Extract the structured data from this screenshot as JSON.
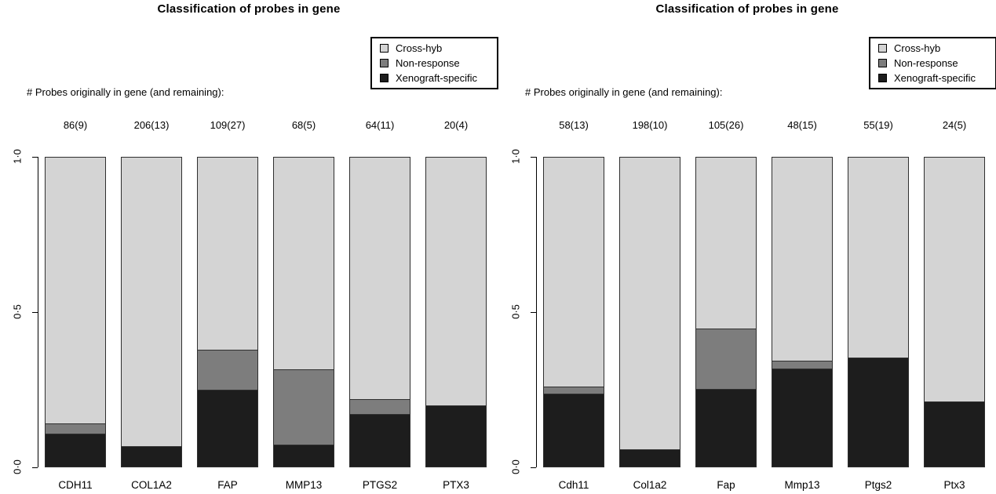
{
  "figure": {
    "background": "#ffffff"
  },
  "colors": {
    "Cross-hyb": "#d4d4d4",
    "Non-response": "#7d7d7d",
    "Xenograft-specific": "#1d1d1d",
    "segment_border": "#2f2f2f",
    "axis": "#000000"
  },
  "chart_data": [
    {
      "type": "bar",
      "stacked": true,
      "title": "Classification of probes in gene",
      "annotation": "# Probes originally in gene (and remaining):",
      "legend": [
        "Cross-hyb",
        "Non-response",
        "Xenograft-specific"
      ],
      "legend_position": "top-right",
      "categories": [
        "CDH11",
        "COL1A2",
        "FAP",
        "MMP13",
        "PTGS2",
        "PTX3"
      ],
      "counts": [
        "86(9)",
        "206(13)",
        "109(27)",
        "68(5)",
        "64(11)",
        "20(4)"
      ],
      "ylim": [
        0,
        1
      ],
      "grid": false,
      "yticks": [
        {
          "value": 0.0,
          "label": "0·0"
        },
        {
          "value": 0.5,
          "label": "0·5"
        },
        {
          "value": 1.0,
          "label": "1·0"
        }
      ],
      "series_order": "bottom-to-top",
      "series": [
        {
          "name": "Xenograft-specific",
          "values": [
            0.105,
            0.065,
            0.247,
            0.07,
            0.168,
            0.196
          ]
        },
        {
          "name": "Non-response",
          "values": [
            0.033,
            0.0,
            0.13,
            0.242,
            0.049,
            0.0
          ]
        },
        {
          "name": "Cross-hyb",
          "values": [
            0.862,
            0.935,
            0.623,
            0.688,
            0.783,
            0.804
          ]
        }
      ]
    },
    {
      "type": "bar",
      "stacked": true,
      "title": "Classification of probes in gene",
      "annotation": "# Probes originally in gene (and remaining):",
      "legend": [
        "Cross-hyb",
        "Non-response",
        "Xenograft-specific"
      ],
      "legend_position": "top-right",
      "categories": [
        "Cdh11",
        "Col1a2",
        "Fap",
        "Mmp13",
        "Ptgs2",
        "Ptx3"
      ],
      "counts": [
        "58(13)",
        "198(10)",
        "105(26)",
        "48(15)",
        "55(19)",
        "24(5)"
      ],
      "ylim": [
        0,
        1
      ],
      "grid": false,
      "yticks": [
        {
          "value": 0.0,
          "label": "0·0"
        },
        {
          "value": 0.5,
          "label": "0·5"
        },
        {
          "value": 1.0,
          "label": "1·0"
        }
      ],
      "series_order": "bottom-to-top",
      "series": [
        {
          "name": "Xenograft-specific",
          "values": [
            0.235,
            0.055,
            0.25,
            0.315,
            0.35,
            0.21
          ]
        },
        {
          "name": "Non-response",
          "values": [
            0.022,
            0.0,
            0.194,
            0.026,
            0.0,
            0.0
          ]
        },
        {
          "name": "Cross-hyb",
          "values": [
            0.743,
            0.945,
            0.556,
            0.659,
            0.65,
            0.79
          ]
        }
      ]
    }
  ]
}
